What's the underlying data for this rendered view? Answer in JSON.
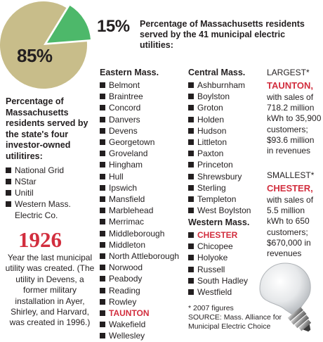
{
  "chart_data": {
    "type": "pie",
    "slices": [
      {
        "label": "85%",
        "value": 85,
        "color": "#c8bd8a"
      },
      {
        "label": "15%",
        "value": 15,
        "color": "#4db86a"
      }
    ]
  },
  "pie_labels": {
    "investor_pct": "85%",
    "municipal_pct": "15%",
    "municipal_desc": "Percentage of Massachusetts residents served by the 41 municipal electric utilities:",
    "investor_desc": "Percentage of Massachusetts residents served by the state's four investor-owned utilitires:"
  },
  "investor_utilities": [
    "National Grid",
    "NStar",
    "Unitil",
    "Western Mass. Electric Co."
  ],
  "history": {
    "year": "1926",
    "note": "Year the last municipal utility was created. (The utility in Devens, a former military installation in Ayer, Shirley, and Harvard, was created in 1996.)"
  },
  "eastern": {
    "heading": "Eastern Mass.",
    "towns": [
      "Belmont",
      "Braintree",
      "Concord",
      "Danvers",
      "Devens",
      "Georgetown",
      "Groveland",
      "Hingham",
      "Hull",
      "Ipswich",
      "Mansfield",
      "Marblehead",
      "Merrimac",
      "Middleborough",
      "Middleton",
      "North Attleborough",
      "Norwood",
      "Peabody",
      "Reading",
      "Rowley",
      "TAUNTON",
      "Wakefield",
      "Wellesley"
    ],
    "highlight": "TAUNTON"
  },
  "central": {
    "heading": "Central Mass.",
    "towns": [
      "Ashburnham",
      "Boylston",
      "Groton",
      "Holden",
      "Hudson",
      "Littleton",
      "Paxton",
      "Princeton",
      "Shrewsbury",
      "Sterling",
      "Templeton",
      "West Boylston"
    ]
  },
  "western": {
    "heading": "Western Mass.",
    "towns": [
      "CHESTER",
      "Chicopee",
      "Holyoke",
      "Russell",
      "South Hadley",
      "Westfield"
    ],
    "highlight": "CHESTER"
  },
  "largest": {
    "heading": "LARGEST*",
    "city": "TAUNTON,",
    "details": "with sales of 718.2 million kWh to 35,900 customers; $93.6 million in revenues"
  },
  "smallest": {
    "heading": "SMALLEST*",
    "city": "CHESTER,",
    "details": "with sales of 5.5 million kWh to 650 customers; $670,000 in revenues"
  },
  "footnote": {
    "line1": "* 2007 figures",
    "line2": "SOURCE: Mass. Alliance for Municipal Electric Choice"
  }
}
